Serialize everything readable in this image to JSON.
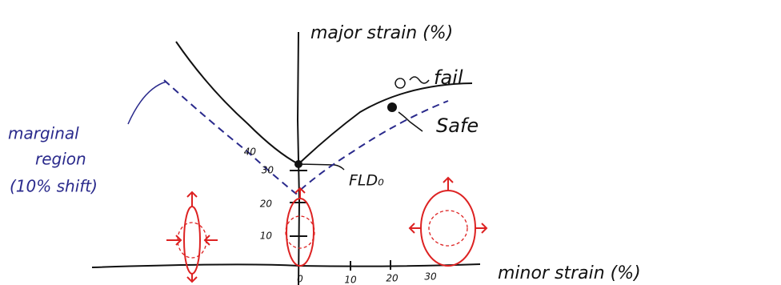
{
  "axes": {
    "y_label": "major strain (%)",
    "x_label": "minor strain (%)",
    "y_ticks": [
      "10",
      "20",
      "30",
      "40"
    ],
    "x_ticks": [
      "0",
      "10",
      "20",
      "30"
    ]
  },
  "curves": {
    "fail": "fail",
    "safe": "Safe",
    "fld": "FLD₀"
  },
  "annotation": {
    "lines": [
      "marginal",
      "region",
      "(10% shift)"
    ]
  }
}
